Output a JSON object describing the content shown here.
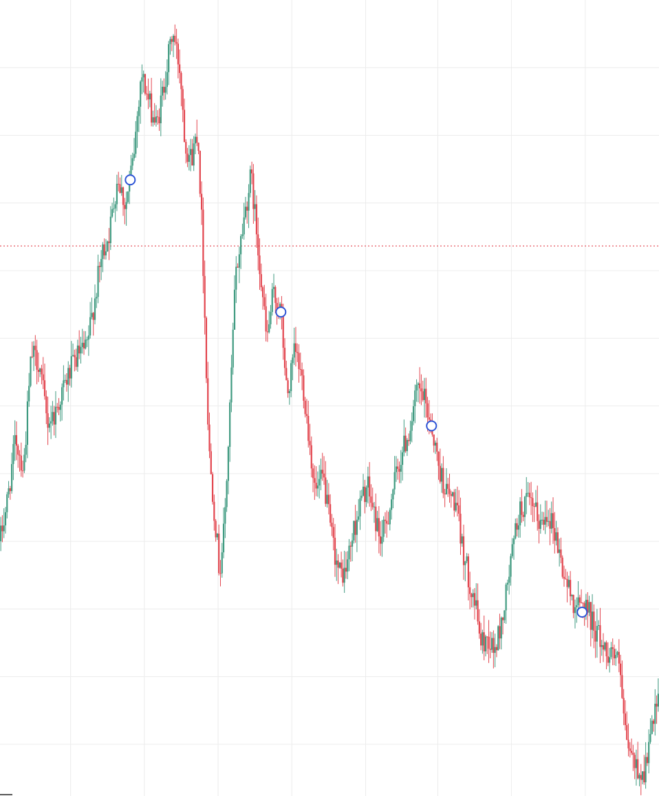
{
  "colors": {
    "background": "#ffffff",
    "grid": "#ececec",
    "up": "#3f9a80",
    "down": "#e2444d",
    "price_line": "#e2444d",
    "marker_stroke": "#2d54d6",
    "marker_fill": "#ffffff"
  },
  "chart_data": {
    "type": "candlestick",
    "title": "",
    "xlabel": "",
    "ylabel": "",
    "grid": true,
    "legend": "none",
    "x_range": [
      0,
      420
    ],
    "y_range": [
      0,
      100
    ],
    "x_gridlines": [
      45,
      92,
      139,
      186,
      233,
      279,
      326,
      373
    ],
    "y_gridlines": [
      91.5,
      83.0,
      74.5,
      66.0,
      57.5,
      49.0,
      40.5,
      32.0,
      23.5,
      15.0,
      6.5
    ],
    "current_price_line": 69.1,
    "markers": [
      {
        "x": 83,
        "y": 77.4
      },
      {
        "x": 179,
        "y": 60.8
      },
      {
        "x": 275,
        "y": 46.5
      },
      {
        "x": 371,
        "y": 23.1
      }
    ],
    "path": [
      [
        0,
        32.0
      ],
      [
        5,
        37.5
      ],
      [
        10,
        45.0
      ],
      [
        15,
        41.0
      ],
      [
        20,
        55.5
      ],
      [
        25,
        54.5
      ],
      [
        30,
        47.0
      ],
      [
        35,
        48.0
      ],
      [
        40,
        51.0
      ],
      [
        45,
        53.5
      ],
      [
        50,
        55.5
      ],
      [
        55,
        56.0
      ],
      [
        60,
        62.0
      ],
      [
        65,
        68.0
      ],
      [
        70,
        71.0
      ],
      [
        75,
        78.0
      ],
      [
        80,
        74.0
      ],
      [
        85,
        80.0
      ],
      [
        90,
        91.0
      ],
      [
        95,
        87.0
      ],
      [
        100,
        84.0
      ],
      [
        105,
        90.0
      ],
      [
        110,
        96.0
      ],
      [
        115,
        91.0
      ],
      [
        118,
        82.0
      ],
      [
        122,
        80.0
      ],
      [
        126,
        84.0
      ],
      [
        129,
        70.0
      ],
      [
        133,
        44.0
      ],
      [
        137,
        35.0
      ],
      [
        140,
        28.0
      ],
      [
        143,
        34.0
      ],
      [
        146,
        46.0
      ],
      [
        150,
        65.0
      ],
      [
        155,
        72.0
      ],
      [
        160,
        78.0
      ],
      [
        163,
        72.0
      ],
      [
        166,
        66.0
      ],
      [
        170,
        57.0
      ],
      [
        174,
        63.0
      ],
      [
        179,
        60.8
      ],
      [
        183,
        50.0
      ],
      [
        188,
        56.0
      ],
      [
        193,
        52.0
      ],
      [
        197,
        45.0
      ],
      [
        201,
        38.0
      ],
      [
        206,
        40.0
      ],
      [
        211,
        33.0
      ],
      [
        216,
        28.0
      ],
      [
        220,
        28.0
      ],
      [
        225,
        33.0
      ],
      [
        230,
        37.0
      ],
      [
        234,
        39.0
      ],
      [
        239,
        35.0
      ],
      [
        243,
        32.0
      ],
      [
        247,
        35.0
      ],
      [
        251,
        39.0
      ],
      [
        256,
        43.0
      ],
      [
        261,
        46.0
      ],
      [
        266,
        51.0
      ],
      [
        270,
        50.0
      ],
      [
        275,
        46.5
      ],
      [
        280,
        41.0
      ],
      [
        285,
        38.0
      ],
      [
        290,
        37.0
      ],
      [
        294,
        32.0
      ],
      [
        298,
        28.0
      ],
      [
        302,
        25.0
      ],
      [
        307,
        19.0
      ],
      [
        311,
        20.0
      ],
      [
        315,
        18.0
      ],
      [
        320,
        22.0
      ],
      [
        326,
        30.0
      ],
      [
        330,
        35.0
      ],
      [
        335,
        37.0
      ],
      [
        340,
        36.0
      ],
      [
        345,
        34.0
      ],
      [
        349,
        36.0
      ],
      [
        354,
        33.0
      ],
      [
        359,
        28.0
      ],
      [
        364,
        25.0
      ],
      [
        369,
        23.5
      ],
      [
        373,
        24.5
      ],
      [
        377,
        22.0
      ],
      [
        382,
        20.0
      ],
      [
        386,
        18.0
      ],
      [
        390,
        18.5
      ],
      [
        395,
        16.0
      ],
      [
        398,
        8.0
      ],
      [
        402,
        5.0
      ],
      [
        406,
        3.5
      ],
      [
        410,
        2.5
      ],
      [
        413,
        5.5
      ],
      [
        416,
        9.0
      ],
      [
        420,
        12.0
      ]
    ]
  }
}
